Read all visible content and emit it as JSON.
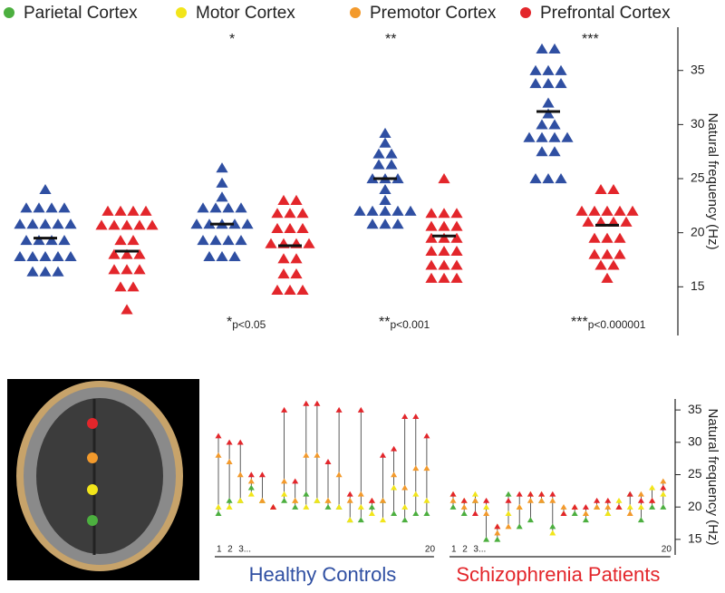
{
  "chart_data": [
    {
      "type": "strip",
      "y_label": "Natural frequency (Hz)",
      "ylim": [
        10.5,
        39
      ],
      "yticks": [
        15,
        20,
        25,
        30,
        35
      ],
      "groups": [
        {
          "series": [
            {
              "color": "#2f4fa2",
              "mean": 19.5,
              "values": [
                24,
                22.3,
                22.3,
                22.3,
                22.3,
                20.8,
                20.8,
                20.8,
                20.8,
                20.8,
                19.3,
                19.3,
                19.3,
                19.3,
                17.8,
                17.8,
                17.8,
                17.8,
                17.8,
                16.4,
                16.4,
                16.4
              ]
            },
            {
              "color": "#e3262b",
              "mean": 18.3,
              "values": [
                22,
                22,
                22,
                22,
                20.7,
                20.7,
                20.7,
                20.7,
                20.7,
                19.3,
                19.3,
                18,
                18,
                18,
                16.6,
                16.6,
                16.6,
                15,
                15,
                12.9
              ]
            }
          ]
        },
        {
          "star": "*",
          "stars_note": "*",
          "p_note": "p<0.05",
          "series": [
            {
              "color": "#2f4fa2",
              "mean": 20.8,
              "values": [
                26,
                24.6,
                23.3,
                22.3,
                22.3,
                22.3,
                22.3,
                20.8,
                20.8,
                20.8,
                20.8,
                20.8,
                19.3,
                19.3,
                19.3,
                19.3,
                17.8,
                17.8,
                17.8
              ]
            },
            {
              "color": "#e3262b",
              "mean": 18.8,
              "values": [
                23,
                23,
                21.8,
                21.8,
                21.8,
                20.4,
                20.4,
                20.4,
                19,
                19,
                19,
                19,
                17.6,
                17.6,
                16.2,
                16.2,
                14.7,
                14.7,
                14.7
              ]
            }
          ]
        },
        {
          "star": "**",
          "stars_note": "**",
          "p_note": "p<0.001",
          "series": [
            {
              "color": "#2f4fa2",
              "mean": 25,
              "values": [
                29.2,
                28.3,
                27.3,
                27.3,
                26.3,
                26.3,
                25,
                25,
                25,
                24,
                23,
                22,
                22,
                22,
                22,
                22,
                20.8,
                20.8,
                20.8
              ]
            },
            {
              "color": "#e3262b",
              "mean": 19.7,
              "values": [
                25,
                21.8,
                21.8,
                21.8,
                20.6,
                20.6,
                20.6,
                19.5,
                19.5,
                19.5,
                18.3,
                18.3,
                18.3,
                17,
                17,
                17,
                15.8,
                15.8,
                15.8
              ]
            }
          ]
        },
        {
          "star": "***",
          "stars_note": "***",
          "p_note": "p<0.000001",
          "series": [
            {
              "color": "#2f4fa2",
              "mean": 31.2,
              "values": [
                37,
                37,
                35,
                35,
                35,
                33.8,
                33.8,
                33.8,
                32,
                31,
                30,
                30,
                28.8,
                28.8,
                28.8,
                28.8,
                27.5,
                27.5,
                25,
                25,
                25
              ]
            },
            {
              "color": "#e3262b",
              "mean": 20.7,
              "values": [
                24,
                24,
                22,
                22,
                22,
                22,
                22,
                21,
                21,
                21,
                21,
                19.5,
                19.5,
                19.5,
                18,
                18,
                18,
                17,
                17,
                15.8
              ]
            }
          ]
        }
      ]
    },
    {
      "type": "range",
      "title": "Healthy Controls",
      "title_color": "#2f4fa2",
      "ylim": [
        12.6,
        36.7
      ],
      "categories": [
        "1",
        "2",
        "3...",
        null,
        null,
        null,
        null,
        null,
        null,
        null,
        null,
        null,
        null,
        null,
        null,
        null,
        null,
        null,
        null,
        "20"
      ],
      "series": [
        {
          "name": "Parietal Cortex",
          "color": "#4caf3f",
          "values": [
            19,
            21,
            21,
            23,
            21,
            20,
            21,
            20,
            22,
            21,
            20,
            20,
            18,
            18,
            20,
            21,
            19,
            18,
            19,
            19
          ]
        },
        {
          "name": "Motor Cortex",
          "color": "#f2e51a",
          "values": [
            20,
            20,
            21,
            22,
            21,
            20,
            22,
            21,
            20,
            21,
            21,
            20,
            18,
            20,
            19,
            18,
            23,
            20,
            22,
            21
          ]
        },
        {
          "name": "Premotor Cortex",
          "color": "#f39a2c",
          "values": [
            28,
            27,
            25,
            24,
            21,
            20,
            24,
            21,
            28,
            28,
            21,
            25,
            21,
            22,
            21,
            21,
            25,
            23,
            26,
            26
          ]
        },
        {
          "name": "Prefrontal Cortex",
          "color": "#e3262b",
          "values": [
            31,
            30,
            30,
            25,
            25,
            20,
            35,
            24,
            36,
            36,
            27,
            35,
            22,
            35,
            21,
            28,
            29,
            34,
            34,
            31
          ]
        }
      ]
    },
    {
      "type": "range",
      "title": "Schizophrenia Patients",
      "title_color": "#e3262b",
      "y_label": "Natural frequency (Hz)",
      "ylim": [
        12.6,
        36.7
      ],
      "yticks": [
        15,
        20,
        25,
        30,
        35
      ],
      "categories": [
        "1",
        "2",
        "3...",
        null,
        null,
        null,
        null,
        null,
        null,
        null,
        null,
        null,
        null,
        null,
        null,
        null,
        null,
        null,
        null,
        "20"
      ],
      "series": [
        {
          "color": "#4caf3f",
          "values": [
            20,
            19,
            21,
            15,
            15,
            22,
            17,
            18,
            21,
            17,
            19,
            19,
            18,
            20,
            19,
            20,
            22,
            18,
            20,
            20
          ]
        },
        {
          "color": "#f2e51a",
          "values": [
            22,
            21,
            22,
            20,
            17,
            19,
            20,
            22,
            22,
            16,
            19,
            20,
            19,
            20,
            19,
            21,
            20,
            20,
            23,
            22
          ]
        },
        {
          "color": "#f39a2c",
          "values": [
            21,
            20,
            21,
            19,
            16,
            17,
            20,
            21,
            21,
            21,
            20,
            20,
            19,
            20,
            20,
            20,
            19,
            22,
            21,
            24
          ]
        },
        {
          "color": "#e3262b",
          "values": [
            22,
            21,
            19,
            21,
            17,
            21,
            22,
            22,
            22,
            22,
            19,
            20,
            20,
            21,
            21,
            20,
            22,
            21,
            21,
            23
          ]
        }
      ]
    }
  ]
}
